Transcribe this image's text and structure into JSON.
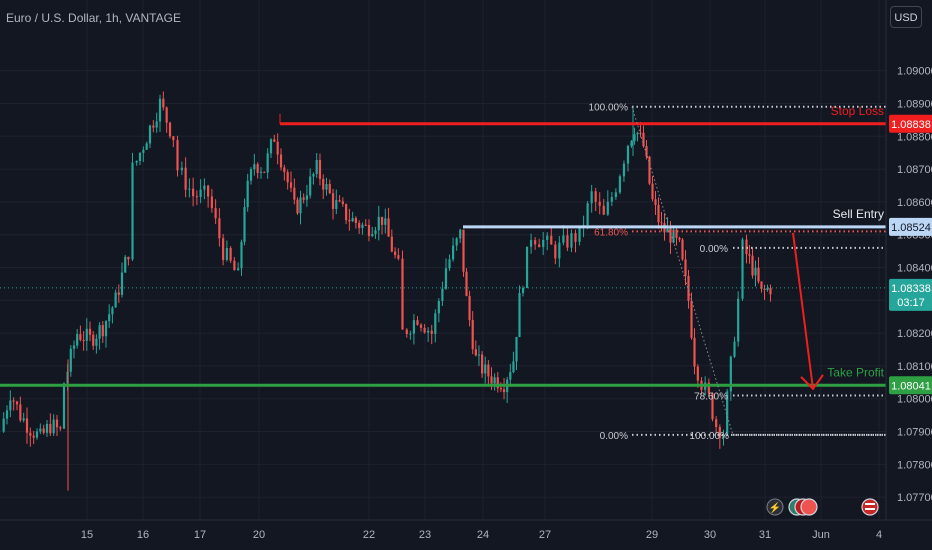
{
  "header": {
    "symbol_title": "Euro / U.S. Dollar, 1h, VANTAGE",
    "currency_button": "USD"
  },
  "labels": {
    "stop_loss": "Stop Loss",
    "sell_entry": "Sell Entry",
    "take_profit": "Take Profit",
    "countdown": "03:17"
  },
  "colors": {
    "background": "#131722",
    "up": "#26a69a",
    "down": "#ef5350",
    "stop_loss": "#f01e1e",
    "sell_entry": "#bcd7f5",
    "take_profit": "#2ea043",
    "current_price": "#26a69a",
    "fib_dots": "#c9cbd1"
  },
  "chart_data": {
    "type": "candlestick",
    "instrument": "Euro / U.S. Dollar",
    "timeframe": "1h",
    "broker": "VANTAGE",
    "currency": "USD",
    "y_axis": {
      "range": [
        1.0767,
        1.0913
      ],
      "tick_labels": [
        "1.09000",
        "1.08900",
        "1.08800",
        "1.08700",
        "1.08600",
        "1.08500",
        "1.08400",
        "1.08300",
        "1.08200",
        "1.08100",
        "1.08000",
        "1.07900",
        "1.07800",
        "1.07700"
      ]
    },
    "x_axis": {
      "tick_labels": [
        "15",
        "16",
        "17",
        "20",
        "22",
        "23",
        "24",
        "27",
        "29",
        "30",
        "31",
        "Jun",
        "4"
      ]
    },
    "price_badges": {
      "stop_loss": "1.08838",
      "sell_entry": "1.08524",
      "current": "1.08338",
      "take_profit": "1.08041"
    },
    "fib_levels": [
      {
        "label": "100.00%",
        "price": 1.0889
      },
      {
        "label": "61.80%",
        "price": 1.0851
      },
      {
        "label": "0.00%",
        "price": 1.0846
      },
      {
        "label": "78.60%",
        "price": 1.0801
      },
      {
        "label": "0.00%",
        "price": 1.0789
      },
      {
        "label": "100.00%",
        "price": 1.0789
      }
    ],
    "price_path": [
      {
        "date": "14",
        "price": 1.079
      },
      {
        "date": "14",
        "price": 1.0802
      },
      {
        "date": "14",
        "price": 1.0795
      },
      {
        "date": "14",
        "price": 1.0791
      },
      {
        "date": "14",
        "price": 1.0788
      },
      {
        "date": "14",
        "price": 1.0792
      },
      {
        "date": "14",
        "price": 1.079
      },
      {
        "date": "15",
        "price": 1.0805
      },
      {
        "date": "15",
        "price": 1.082
      },
      {
        "date": "15",
        "price": 1.0818
      },
      {
        "date": "15",
        "price": 1.0822
      },
      {
        "date": "15",
        "price": 1.083
      },
      {
        "date": "15",
        "price": 1.0845
      },
      {
        "date": "16",
        "price": 1.087
      },
      {
        "date": "16",
        "price": 1.088
      },
      {
        "date": "16",
        "price": 1.089
      },
      {
        "date": "16",
        "price": 1.088
      },
      {
        "date": "17",
        "price": 1.087
      },
      {
        "date": "17",
        "price": 1.0862
      },
      {
        "date": "17",
        "price": 1.0862
      },
      {
        "date": "17",
        "price": 1.0845
      },
      {
        "date": "17",
        "price": 1.0837
      },
      {
        "date": "20",
        "price": 1.086
      },
      {
        "date": "20",
        "price": 1.0872
      },
      {
        "date": "20",
        "price": 1.087
      },
      {
        "date": "20",
        "price": 1.088
      },
      {
        "date": "20",
        "price": 1.087
      },
      {
        "date": "20",
        "price": 1.0858
      },
      {
        "date": "22",
        "price": 1.086
      },
      {
        "date": "22",
        "price": 1.087
      },
      {
        "date": "22",
        "price": 1.086
      },
      {
        "date": "22",
        "price": 1.0855
      },
      {
        "date": "22",
        "price": 1.0852
      },
      {
        "date": "22",
        "price": 1.0855
      },
      {
        "date": "22",
        "price": 1.084
      },
      {
        "date": "23",
        "price": 1.082
      },
      {
        "date": "23",
        "price": 1.0825
      },
      {
        "date": "23",
        "price": 1.082
      },
      {
        "date": "23",
        "price": 1.084
      },
      {
        "date": "23",
        "price": 1.085
      },
      {
        "date": "24",
        "price": 1.083
      },
      {
        "date": "24",
        "price": 1.0812
      },
      {
        "date": "24",
        "price": 1.0808
      },
      {
        "date": "24",
        "price": 1.0806
      },
      {
        "date": "24",
        "price": 1.0805
      },
      {
        "date": "24",
        "price": 1.0812
      },
      {
        "date": "27",
        "price": 1.083
      },
      {
        "date": "27",
        "price": 1.085
      },
      {
        "date": "27",
        "price": 1.0848
      },
      {
        "date": "27",
        "price": 1.0845
      },
      {
        "date": "27",
        "price": 1.0848
      },
      {
        "date": "27",
        "price": 1.085
      },
      {
        "date": "27",
        "price": 1.0862
      },
      {
        "date": "27",
        "price": 1.0855
      },
      {
        "date": "27",
        "price": 1.0865
      },
      {
        "date": "27",
        "price": 1.0878
      },
      {
        "date": "29",
        "price": 1.0883
      },
      {
        "date": "29",
        "price": 1.0877
      },
      {
        "date": "29",
        "price": 1.086
      },
      {
        "date": "29",
        "price": 1.0852
      },
      {
        "date": "29",
        "price": 1.085
      },
      {
        "date": "29",
        "price": 1.0846
      },
      {
        "date": "29",
        "price": 1.083
      },
      {
        "date": "30",
        "price": 1.0812
      },
      {
        "date": "30",
        "price": 1.0805
      },
      {
        "date": "30",
        "price": 1.08
      },
      {
        "date": "30",
        "price": 1.0792
      },
      {
        "date": "30",
        "price": 1.079
      },
      {
        "date": "30",
        "price": 1.081
      },
      {
        "date": "30",
        "price": 1.083
      },
      {
        "date": "31",
        "price": 1.0846
      },
      {
        "date": "31",
        "price": 1.084
      },
      {
        "date": "31",
        "price": 1.0832
      },
      {
        "date": "31",
        "price": 1.0834
      }
    ]
  }
}
